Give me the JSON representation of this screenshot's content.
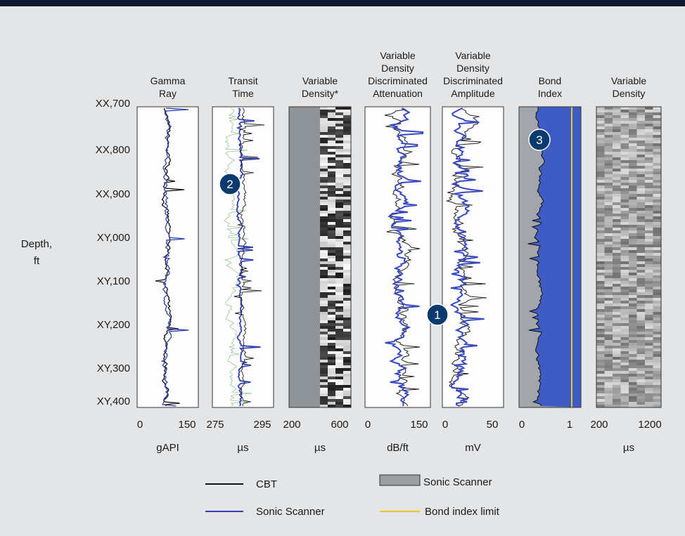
{
  "depth_label": [
    "Depth,",
    "ft"
  ],
  "depths": [
    "XX,700",
    "XX,800",
    "XX,900",
    "XY,000",
    "XY,100",
    "XY,200",
    "XY,300",
    "XY,400"
  ],
  "tracks": [
    {
      "title": [
        "Gamma",
        "Ray"
      ],
      "ticks": [
        "0",
        "150"
      ],
      "unit": "gAPI"
    },
    {
      "title": [
        "Transit",
        "Time"
      ],
      "ticks": [
        "275",
        "295"
      ],
      "unit": "µs"
    },
    {
      "title": [
        "Variable",
        "Density*"
      ],
      "ticks": [
        "200",
        "600"
      ],
      "unit": "µs"
    },
    {
      "title": [
        "Variable",
        "Density",
        "Discriminated",
        "Attenuation"
      ],
      "ticks": [
        "0",
        "150"
      ],
      "unit": "dB/ft"
    },
    {
      "title": [
        "Variable",
        "Density",
        "Discriminated",
        "Amplitude"
      ],
      "ticks": [
        "0",
        "50"
      ],
      "unit": "mV"
    },
    {
      "title": [
        "Bond",
        "Index"
      ],
      "ticks": [
        "0",
        "1"
      ],
      "unit": ""
    },
    {
      "title": [
        "Variable",
        "Density"
      ],
      "ticks": [
        "200",
        "1200"
      ],
      "unit": "µs"
    }
  ],
  "legend": [
    "CBT",
    "Sonic Scanner",
    "Sonic Scanner",
    "Bond index limit"
  ],
  "badges": [
    "1",
    "2",
    "3"
  ]
}
